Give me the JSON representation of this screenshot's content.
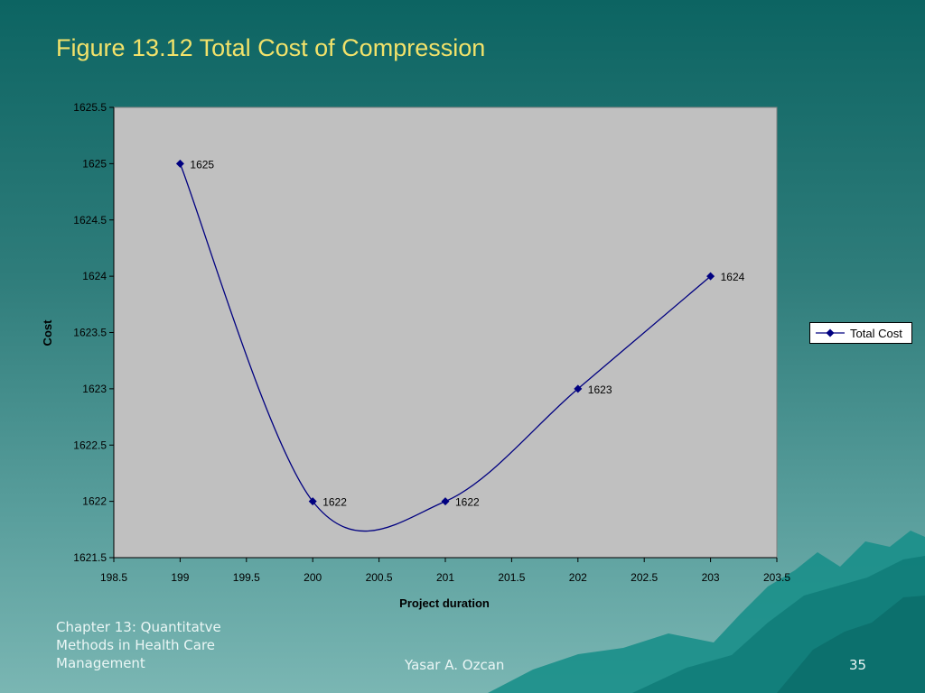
{
  "slide": {
    "title": "Figure 13.12 Total Cost of Compression",
    "footer_chapter": "Chapter 13: Quantitatve Methods in Health Care Management",
    "footer_author": "Yasar A. Ozcan",
    "page_number": "35"
  },
  "colors": {
    "series": "#000080",
    "plot_bg": "#c0c0c0",
    "title": "#f2e26a"
  },
  "chart_data": {
    "type": "scatter",
    "title": "",
    "xlabel": "Project duration",
    "ylabel": "Cost",
    "xlim": [
      198.5,
      203.5
    ],
    "ylim": [
      1621.5,
      1625.5
    ],
    "x_ticks": [
      "198.5",
      "199",
      "199.5",
      "200",
      "200.5",
      "201",
      "201.5",
      "202",
      "202.5",
      "203",
      "203.5"
    ],
    "y_ticks": [
      "1625.5",
      "1625",
      "1624.5",
      "1624",
      "1623.5",
      "1623",
      "1622.5",
      "1622",
      "1621.5"
    ],
    "grid": false,
    "smoothed": true,
    "legend_position": "right",
    "series": [
      {
        "name": "Total Cost",
        "x": [
          199,
          200,
          201,
          202,
          203
        ],
        "y": [
          1625,
          1622,
          1622,
          1623,
          1624
        ],
        "labels": [
          "1625",
          "1622",
          "1622",
          "1623",
          "1624"
        ]
      }
    ]
  }
}
